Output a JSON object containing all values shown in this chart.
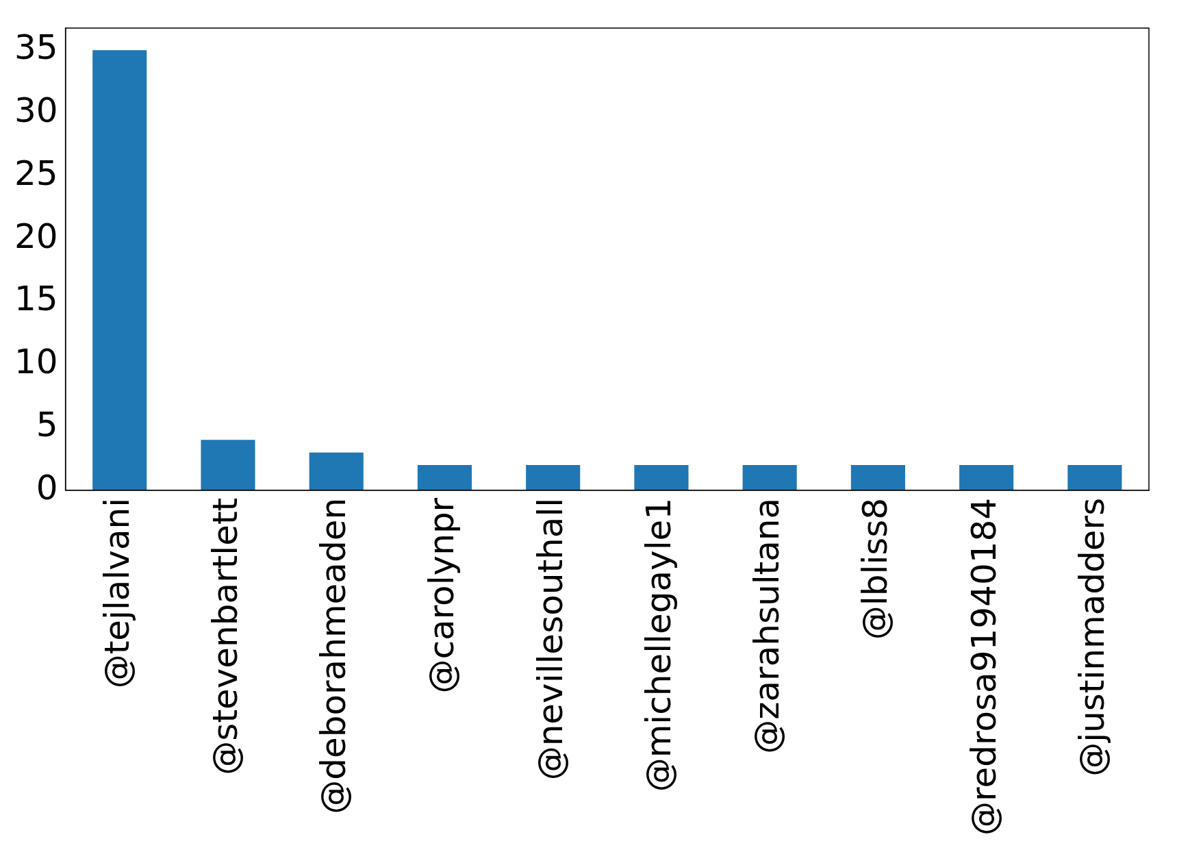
{
  "chart_data": {
    "type": "bar",
    "categories": [
      "@tejlalvani",
      "@stevenbartlett",
      "@deborahmeaden",
      "@carolynpr",
      "@nevillesouthall",
      "@michellegayle1",
      "@zarahsultana",
      "@lbliss8",
      "@redrosa91940184",
      "@justinmadders"
    ],
    "values": [
      35,
      4,
      3,
      2,
      2,
      2,
      2,
      2,
      2,
      2
    ],
    "color": "#1f77b4",
    "ylim": [
      0,
      36.75
    ],
    "yticks": [
      0,
      5,
      10,
      15,
      20,
      25,
      30,
      35
    ],
    "grid": false,
    "legend": false
  }
}
